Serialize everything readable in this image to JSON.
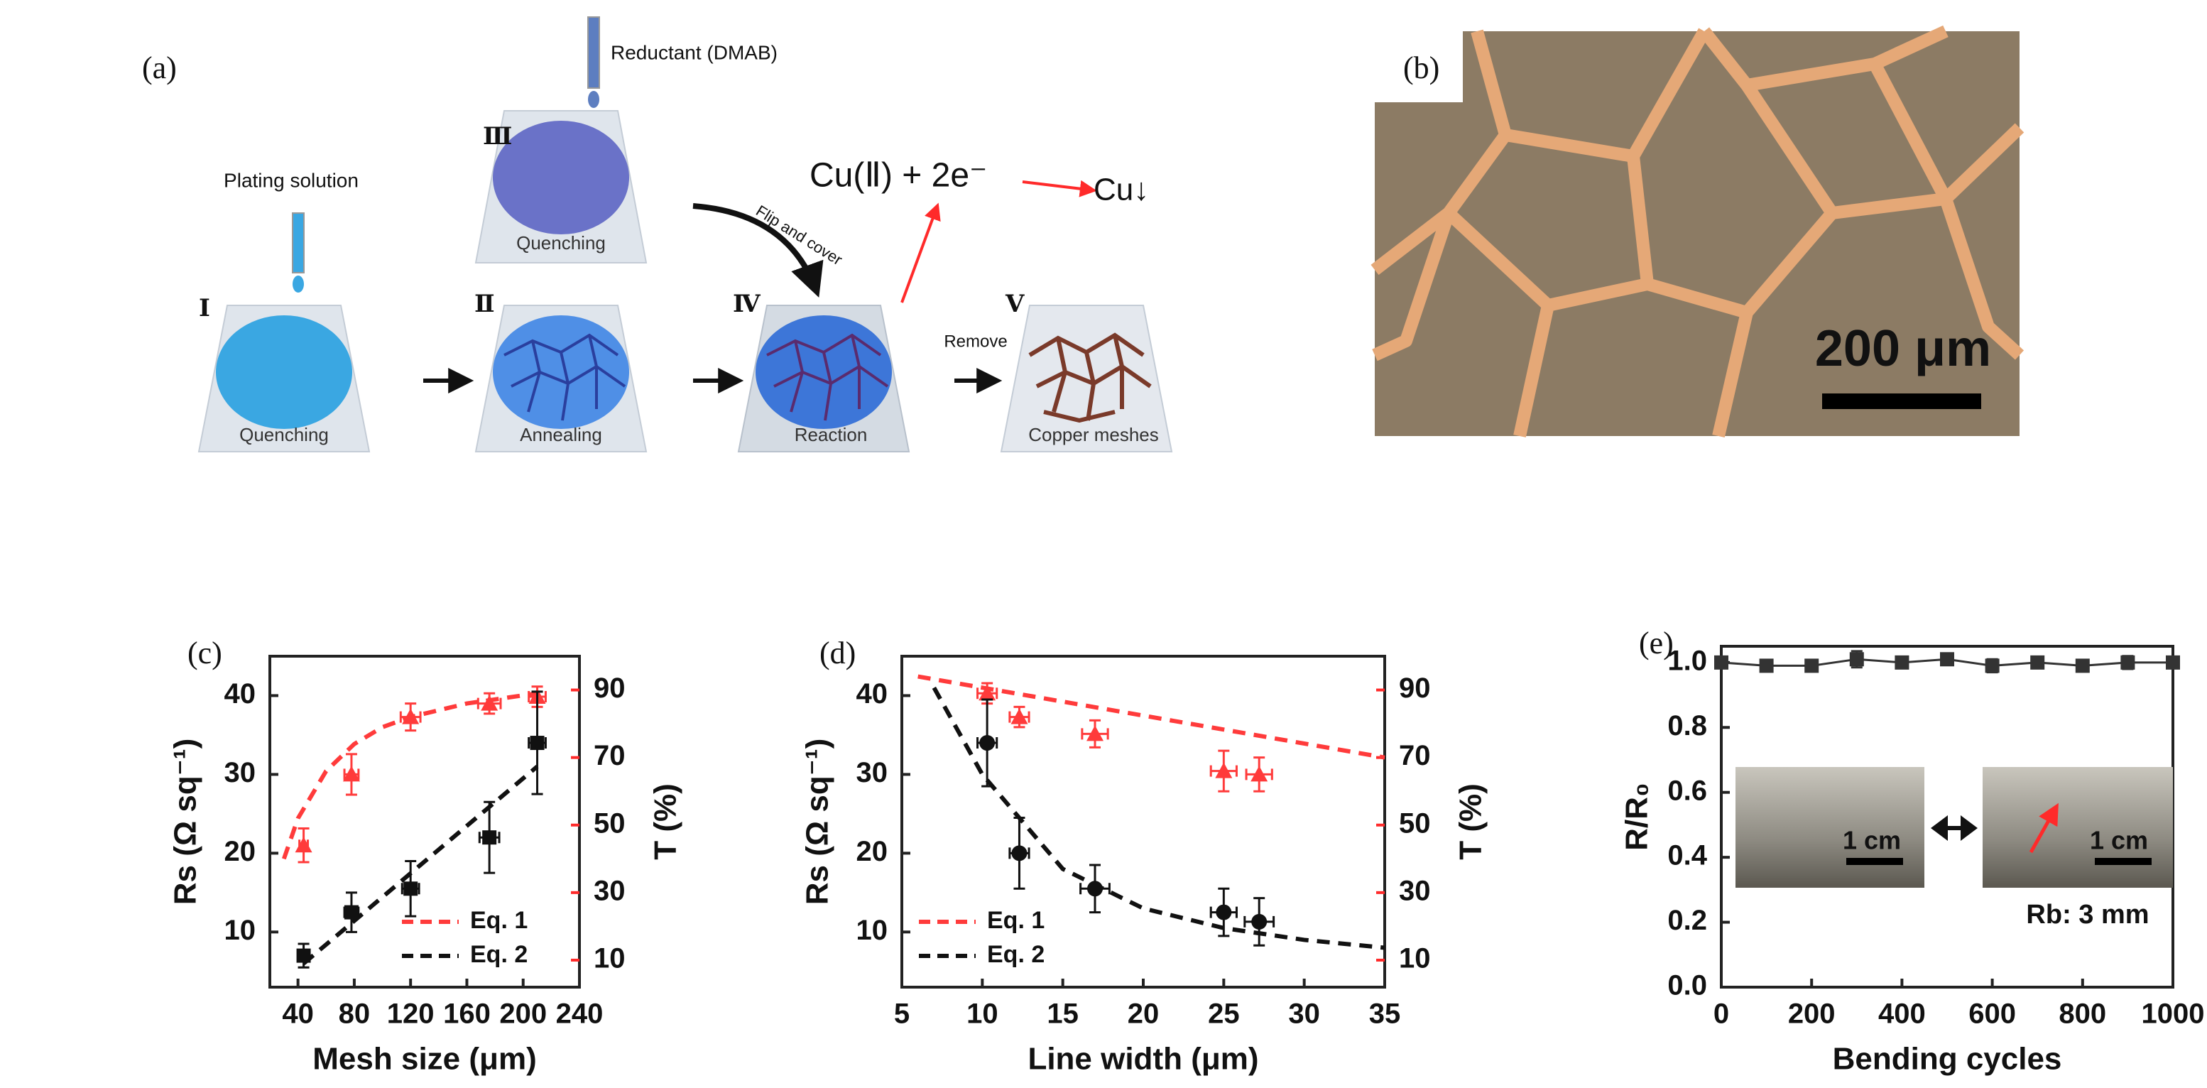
{
  "panel_a": {
    "label": "(a)",
    "reductant": "Reductant (DMAB)",
    "plating_solution": "Plating solution",
    "steps": [
      {
        "numeral": "Ⅰ",
        "caption": "Quenching"
      },
      {
        "numeral": "Ⅱ",
        "caption": "Annealing"
      },
      {
        "numeral": "Ⅲ",
        "caption": "Quenching"
      },
      {
        "numeral": "Ⅳ",
        "caption": "Reaction"
      },
      {
        "numeral": "Ⅴ",
        "caption": "Copper meshes"
      }
    ],
    "flip": "Flip and cover",
    "remove": "Remove",
    "reaction_left": "Cu(Ⅱ) + 2e⁻",
    "reaction_right": "Cu↓"
  },
  "panel_b": {
    "label": "(b)",
    "scale_bar": "200 μm"
  },
  "chart_data": [
    {
      "type": "scatter",
      "label": "(c)",
      "xlabel": "Mesh size (μm)",
      "ylabel": "Rs (Ω sq⁻¹)",
      "y2label": "T (%)",
      "xlim": [
        20,
        240
      ],
      "xticks": [
        40,
        80,
        120,
        160,
        200,
        240
      ],
      "ylim": [
        3,
        45
      ],
      "yticks": [
        10,
        20,
        30,
        40
      ],
      "y2lim": [
        2,
        100
      ],
      "y2ticks": [
        10,
        30,
        50,
        70,
        90
      ],
      "y2color": "#ff2a2a",
      "legend": "lower right",
      "series": [
        {
          "name": "Eq. 1",
          "color": "#ff3b3b",
          "dashed": true,
          "axis": "y2",
          "x": [
            30,
            40,
            60,
            80,
            100,
            120,
            160,
            210
          ],
          "values": [
            40,
            52,
            66,
            74,
            79,
            82,
            86,
            89
          ]
        },
        {
          "name": "Eq. 2",
          "color": "#111111",
          "dashed": true,
          "x": [
            44,
            210
          ],
          "values": [
            6,
            31
          ]
        },
        {
          "color": "#ff3b3b",
          "marker": "triangle",
          "axis": "y2",
          "x": [
            44,
            78,
            120,
            176,
            210
          ],
          "values": [
            44,
            65,
            82,
            86,
            88
          ],
          "yerr": [
            5,
            6,
            4,
            3,
            3
          ],
          "xerr": [
            3,
            5,
            7,
            8,
            6
          ]
        },
        {
          "color": "#111111",
          "marker": "square",
          "x": [
            44,
            78,
            120,
            176,
            210
          ],
          "values": [
            7,
            12.5,
            15.5,
            22,
            34
          ],
          "yerr": [
            1.5,
            2.5,
            3.5,
            4.5,
            6.5
          ],
          "xerr": [
            3,
            5,
            6,
            7,
            6
          ]
        }
      ]
    },
    {
      "type": "scatter",
      "label": "(d)",
      "xlabel": "Line width (μm)",
      "ylabel": "Rs (Ω sq⁻¹)",
      "y2label": "T (%)",
      "xlim": [
        5,
        35
      ],
      "xticks": [
        5,
        10,
        15,
        20,
        25,
        30,
        35
      ],
      "ylim": [
        3,
        45
      ],
      "yticks": [
        10,
        20,
        30,
        40
      ],
      "y2lim": [
        2,
        100
      ],
      "y2ticks": [
        10,
        30,
        50,
        70,
        90
      ],
      "y2color": "#ff2a2a",
      "legend": "lower left",
      "series": [
        {
          "name": "Eq. 1",
          "color": "#ff3b3b",
          "dashed": true,
          "axis": "y2",
          "x": [
            6,
            35
          ],
          "values": [
            94,
            70
          ]
        },
        {
          "name": "Eq. 2",
          "color": "#111111",
          "dashed": true,
          "x": [
            7,
            10,
            15,
            20,
            25,
            30,
            35
          ],
          "values": [
            41,
            30,
            18,
            13,
            10.5,
            9,
            8
          ]
        },
        {
          "color": "#ff3b3b",
          "marker": "triangle",
          "axis": "y2",
          "x": [
            10.3,
            12.3,
            17,
            25,
            27.2
          ],
          "values": [
            89,
            82,
            77,
            66,
            65
          ],
          "yerr": [
            3,
            3,
            4,
            6,
            5
          ],
          "xerr": [
            0.6,
            0.6,
            0.8,
            0.8,
            0.8
          ]
        },
        {
          "color": "#111111",
          "marker": "circle",
          "x": [
            10.3,
            12.3,
            17,
            25,
            27.2
          ],
          "values": [
            34,
            20,
            15.5,
            12.5,
            11.3
          ],
          "yerr": [
            5.5,
            4.5,
            3,
            3,
            3
          ],
          "xerr": [
            0.6,
            0.6,
            0.9,
            0.8,
            0.9
          ]
        }
      ]
    },
    {
      "type": "line",
      "label": "(e)",
      "xlabel": "Bending cycles",
      "ylabel": "R/R₀",
      "xlim": [
        0,
        1000
      ],
      "xticks": [
        0,
        200,
        400,
        600,
        800,
        1000
      ],
      "ylim": [
        0,
        1.05
      ],
      "yticks": [
        {
          "value": 0,
          "label": "0.0"
        },
        0.2,
        0.4,
        0.6,
        0.8,
        {
          "value": 1,
          "label": "1.0"
        }
      ],
      "series": [
        {
          "color": "#333333",
          "marker": "square",
          "x": [
            0,
            100,
            200,
            300,
            400,
            500,
            600,
            700,
            800,
            900,
            1000
          ],
          "values": [
            1,
            0.99,
            0.99,
            1.01,
            1,
            1.01,
            0.99,
            1,
            0.99,
            1,
            1
          ],
          "yerr": [
            0.01,
            0.015,
            0.015,
            0.025,
            0.01,
            0.01,
            0.02,
            0.01,
            0.01,
            0.02,
            0.01
          ]
        }
      ],
      "annotations": [
        "1 cm",
        "1 cm",
        "Rb: 3 mm"
      ]
    }
  ]
}
